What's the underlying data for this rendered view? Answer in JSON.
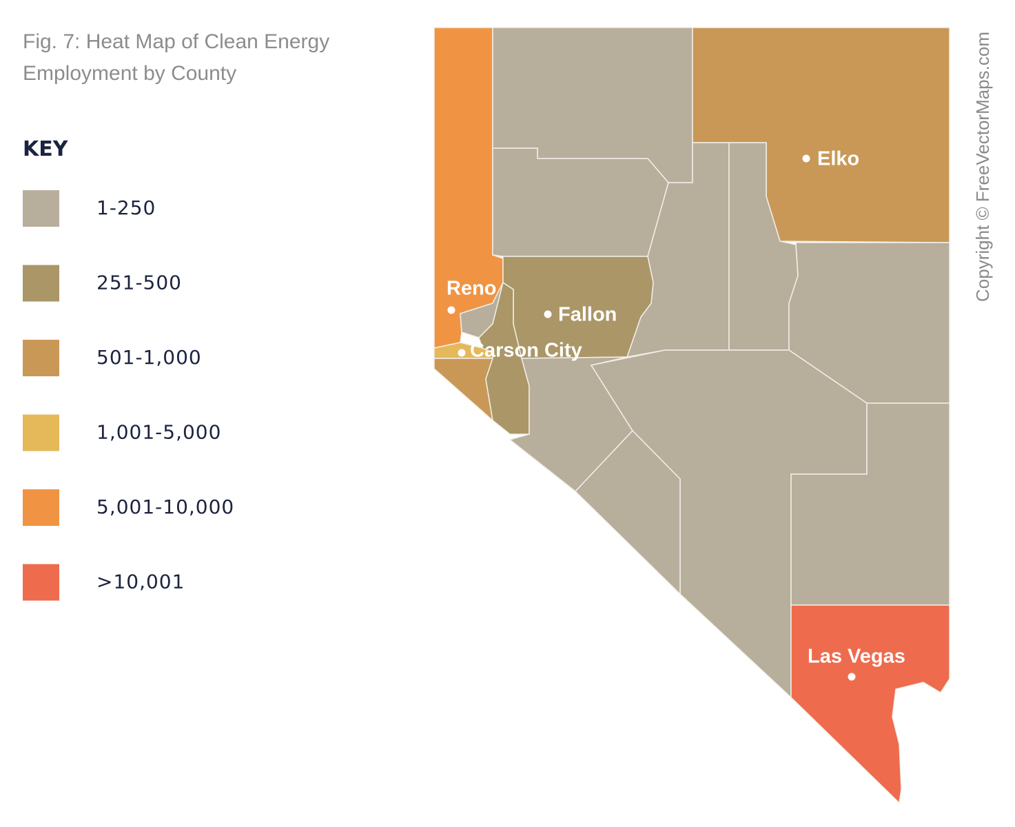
{
  "title_lines": [
    "Fig. 7: Heat Map of Clean Energy",
    "Employment by County"
  ],
  "key": {
    "title": "KEY",
    "items": [
      {
        "label": "1-250",
        "color": "#b8ae9c"
      },
      {
        "label": "251-500",
        "color": "#ab9668"
      },
      {
        "label": "501-1,000",
        "color": "#c99857"
      },
      {
        "label": "1,001-5,000",
        "color": "#e5b85a"
      },
      {
        "label": "5,001-10,000",
        "color": "#f09443"
      },
      {
        "label": ">10,001",
        "color": "#ee6b4d"
      }
    ]
  },
  "cities": [
    {
      "label": "Elko"
    },
    {
      "label": "Reno"
    },
    {
      "label": "Fallon"
    },
    {
      "label": "Carson City"
    },
    {
      "label": "Las Vegas"
    }
  ],
  "copyright": "Copyright © FreeVectorMaps.com"
}
